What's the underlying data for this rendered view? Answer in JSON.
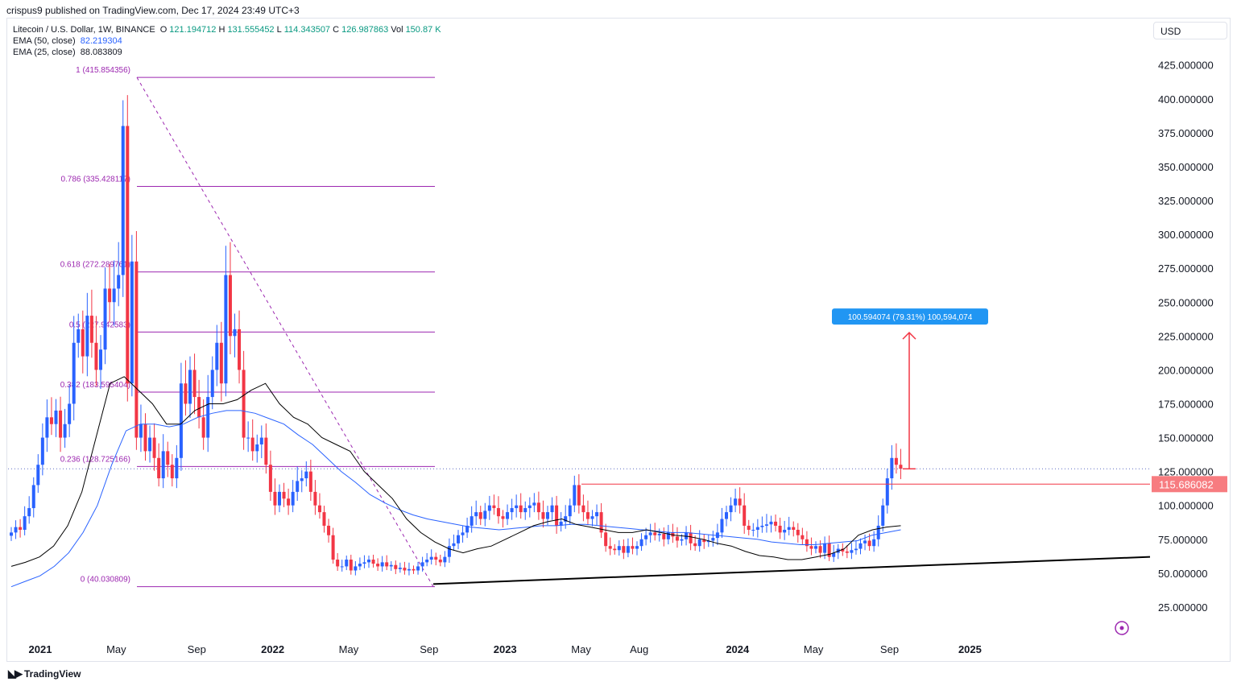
{
  "publisher_line": "crispus9 published on TradingView.com, Dec 17, 2024 23:49 UTC+3",
  "legend": {
    "symbol": "Litecoin / U.S. Dollar, 1W, BINANCE",
    "open_label": "O",
    "open": "121.194712",
    "high_label": "H",
    "high": "131.555452",
    "low_label": "L",
    "low": "114.343507",
    "close_label": "C",
    "close": "126.987863",
    "vol_label": "Vol",
    "vol": "150.87 K",
    "ema50_label": "EMA (50, close)",
    "ema50": "82.219304",
    "ema25_label": "EMA (25, close)",
    "ema25": "88.083809"
  },
  "currency": "USD",
  "brand": "TradingView",
  "colors": {
    "up": "#2962ff",
    "down": "#f23645",
    "fib": "#9c27b0",
    "ema50": "#2962ff",
    "ema25": "#000000",
    "measure": "#2196f3",
    "resistance": "#f23645"
  },
  "chart_data": {
    "type": "candlestick",
    "interval": "1W",
    "y_axis_ticks": [
      "25.000000",
      "50.000000",
      "75.000000",
      "100.000000",
      "125.000000",
      "150.000000",
      "175.000000",
      "200.000000",
      "225.000000",
      "250.000000",
      "275.000000",
      "300.000000",
      "325.000000",
      "350.000000",
      "375.000000",
      "400.000000",
      "425.000000"
    ],
    "ylim": [
      0,
      450
    ],
    "x_axis_ticks": [
      {
        "label": "2021",
        "t": 0,
        "bold": true
      },
      {
        "label": "May",
        "t": 17
      },
      {
        "label": "Sep",
        "t": 35
      },
      {
        "label": "2022",
        "t": 52,
        "bold": true
      },
      {
        "label": "May",
        "t": 69
      },
      {
        "label": "Sep",
        "t": 87
      },
      {
        "label": "2023",
        "t": 104,
        "bold": true
      },
      {
        "label": "May",
        "t": 121
      },
      {
        "label": "Aug",
        "t": 134
      },
      {
        "label": "2024",
        "t": 156,
        "bold": true
      },
      {
        "label": "May",
        "t": 173
      },
      {
        "label": "Sep",
        "t": 190
      },
      {
        "label": "2025",
        "t": 208,
        "bold": true
      }
    ],
    "closes": [
      80,
      84,
      82,
      92,
      98,
      115,
      130,
      150,
      165,
      160,
      170,
      150,
      160,
      175,
      220,
      230,
      210,
      240,
      220,
      200,
      215,
      260,
      250,
      260,
      270,
      380,
      190,
      280,
      150,
      160,
      140,
      150,
      135,
      120,
      140,
      130,
      120,
      135,
      190,
      175,
      200,
      180,
      165,
      150,
      180,
      200,
      220,
      190,
      270,
      225,
      230,
      200,
      150,
      150,
      140,
      145,
      150,
      130,
      110,
      100,
      110,
      105,
      100,
      110,
      118,
      120,
      125,
      110,
      100,
      95,
      85,
      78,
      60,
      55,
      55,
      60,
      52,
      55,
      57,
      58,
      60,
      57,
      55,
      58,
      55,
      56,
      53,
      54,
      52,
      53,
      52,
      55,
      58,
      60,
      62,
      60,
      58,
      62,
      70,
      72,
      78,
      80,
      85,
      92,
      95,
      90,
      96,
      100,
      98,
      92,
      90,
      95,
      98,
      100,
      95,
      98,
      100,
      102,
      95,
      90,
      95,
      100,
      85,
      88,
      92,
      100,
      115,
      100,
      95,
      90,
      92,
      95,
      80,
      70,
      68,
      67,
      70,
      65,
      70,
      68,
      70,
      75,
      78,
      80,
      78,
      79,
      75,
      80,
      77,
      74,
      75,
      80,
      72,
      70,
      75,
      73,
      74,
      76,
      80,
      90,
      95,
      100,
      105,
      100,
      85,
      82,
      82,
      84,
      85,
      86,
      88,
      85,
      80,
      82,
      84,
      82,
      78,
      75,
      70,
      68,
      70,
      65,
      72,
      62,
      65,
      68,
      66,
      65,
      67,
      68,
      72,
      74,
      70,
      75,
      85,
      100,
      120,
      135,
      130,
      127
    ],
    "ema25_approx": [
      55,
      58,
      62,
      70,
      85,
      110,
      150,
      190,
      195,
      185,
      175,
      160,
      160,
      170,
      175,
      175,
      178,
      185,
      190,
      175,
      165,
      160,
      150,
      145,
      140,
      125,
      115,
      105,
      90,
      80,
      73,
      68,
      65,
      68,
      70,
      75,
      80,
      85,
      88,
      90,
      86,
      84,
      82,
      80,
      80,
      82,
      80,
      78,
      77,
      75,
      72,
      70,
      66,
      63,
      62,
      60,
      60,
      62,
      64,
      68,
      78,
      82,
      84,
      85
    ],
    "ema50_approx": [
      40,
      44,
      48,
      55,
      65,
      80,
      100,
      130,
      155,
      160,
      160,
      158,
      160,
      165,
      168,
      170,
      170,
      168,
      164,
      160,
      152,
      145,
      135,
      125,
      117,
      108,
      102,
      97,
      93,
      90,
      88,
      86,
      84,
      83,
      82,
      83,
      84,
      85,
      85,
      86,
      86,
      85,
      84,
      83,
      82,
      81,
      80,
      80,
      79,
      78,
      77,
      76,
      75,
      73,
      72,
      71,
      71,
      72,
      73,
      74,
      78,
      80,
      82
    ],
    "fib_levels": [
      {
        "ratio": "1",
        "value": 415.854356,
        "label": "1 (415.854356)"
      },
      {
        "ratio": "0.786",
        "value": 335.428117,
        "label": "0.786 (335.428117)"
      },
      {
        "ratio": "0.618",
        "value": 272.289761,
        "label": "0.618 (272.289761)"
      },
      {
        "ratio": "0.5",
        "value": 227.942583,
        "label": "0.5 (227.942583)"
      },
      {
        "ratio": "0.382",
        "value": 183.595404,
        "label": "0.382 (183.595404)"
      },
      {
        "ratio": "0.236",
        "value": 128.725166,
        "label": "0.236 (128.725166)"
      },
      {
        "ratio": "0",
        "value": 40.030809,
        "label": "0 (40.030809)"
      }
    ],
    "resistance_level": {
      "value": 115.686082,
      "label": "115.686082"
    },
    "current_price_dotted": 126.987863,
    "measure": {
      "label": "100.594074 (79.31%) 100,594,074",
      "from": 126.987863,
      "to": 227.5
    },
    "trendline": {
      "from": {
        "t": 69,
        "price": 42
      },
      "to": {
        "t": 209,
        "price": 62
      }
    }
  }
}
